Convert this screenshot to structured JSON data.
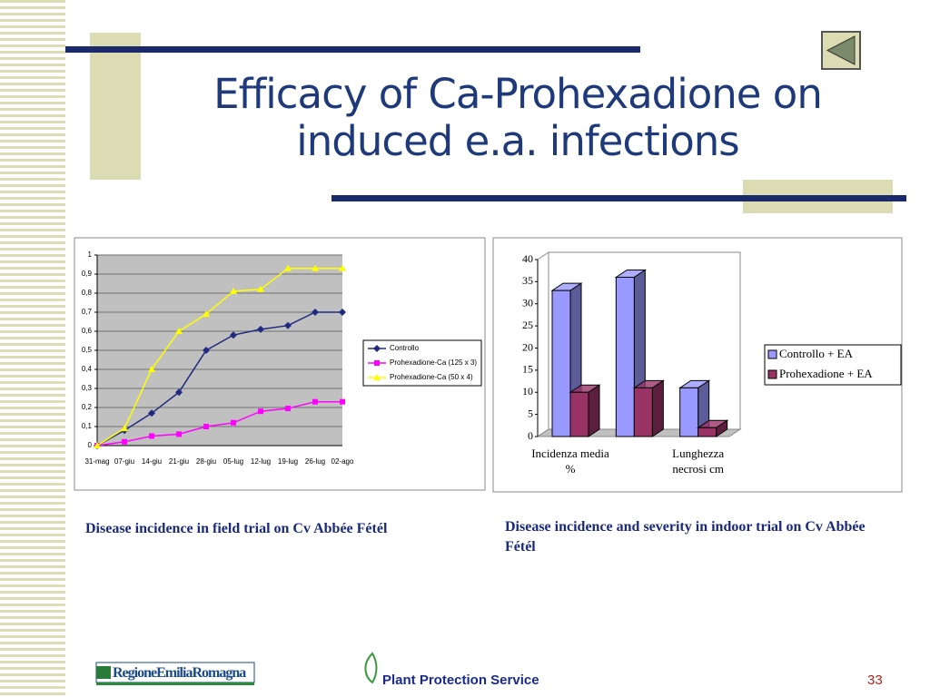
{
  "title": "Efficacy of Ca-Prohexadione on induced e.a. infections",
  "chart_data": [
    {
      "type": "line",
      "categories": [
        "31-mag",
        "07-giu",
        "14-giu",
        "21-giu",
        "28-giu",
        "05-lug",
        "12-lug",
        "19-lug",
        "26-lug",
        "02-ago"
      ],
      "series": [
        {
          "name": "Controllo",
          "color": "#1f2a80",
          "marker": "diamond",
          "values": [
            0,
            0.08,
            0.17,
            0.28,
            0.5,
            0.58,
            0.61,
            0.63,
            0.7,
            0.7
          ]
        },
        {
          "name": "Prohexadione-Ca (125 x 3)",
          "color": "#ff00ff",
          "marker": "square",
          "values": [
            0,
            0.02,
            0.05,
            0.06,
            0.1,
            0.12,
            0.18,
            0.195,
            0.23,
            0.23
          ]
        },
        {
          "name": "Prohexadione-Ca (50 x 4)",
          "color": "#ffff00",
          "marker": "triangle",
          "values": [
            0,
            0.09,
            0.4,
            0.6,
            0.69,
            0.81,
            0.82,
            0.93,
            0.93,
            0.93
          ]
        }
      ],
      "ylim": [
        0,
        1
      ],
      "yticks": [
        0,
        {
          "value": 0.1,
          "label": "0,1"
        },
        {
          "value": 0.2,
          "label": "0,2"
        },
        {
          "value": 0.3,
          "label": "0,3"
        },
        {
          "value": 0.4,
          "label": "0,4"
        },
        {
          "value": 0.5,
          "label": "0,5"
        },
        {
          "value": 0.6,
          "label": "0,6"
        },
        {
          "value": 0.7,
          "label": "0,7"
        },
        {
          "value": 0.8,
          "label": "0,8"
        },
        {
          "value": 0.9,
          "label": "0,9"
        },
        1
      ],
      "grid": true,
      "legend": "right"
    },
    {
      "type": "bar",
      "categories": [
        "Incidenza media %",
        null,
        "Lunghezza necrosi cm"
      ],
      "series": [
        {
          "name": "Controllo + EA",
          "color": "#9999ff",
          "values": [
            33,
            36,
            11
          ]
        },
        {
          "name": "Prohexadione + EA",
          "color": "#993366",
          "values": [
            10,
            11,
            2
          ]
        }
      ],
      "ylim": [
        0,
        40
      ],
      "yticks": [
        0,
        5,
        10,
        15,
        20,
        25,
        30,
        35,
        40
      ],
      "legend": "right"
    }
  ],
  "captions": [
    "Disease incidence in field trial on Cv Abbée Fétél",
    "Disease incidence and severity in indoor trial on Cv Abbée Fétél"
  ],
  "footer": {
    "logo": "RegioneEmiliaRomagna",
    "service": "Plant Protection Service",
    "page": "33"
  }
}
